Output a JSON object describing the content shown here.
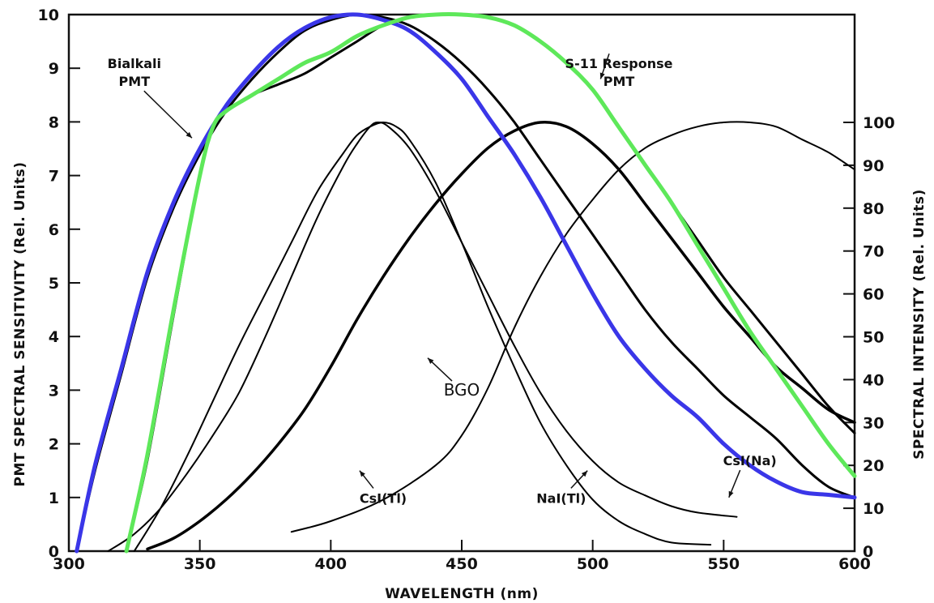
{
  "chart_data": {
    "type": "line",
    "title": "",
    "xlabel": "WAVELENGTH (nm)",
    "ylabel_left": "PMT SPECTRAL SENSITIVITY (Rel. Units)",
    "ylabel_right": "SPECTRAL INTENSITY (Rel. Units)",
    "xlim": [
      300,
      600
    ],
    "ylim_left": [
      0,
      10
    ],
    "ylim_right": [
      0,
      100
    ],
    "x_ticks": [
      "300",
      "350",
      "400",
      "450",
      "500",
      "550",
      "600"
    ],
    "y_ticks_left": [
      "0",
      "1",
      "2",
      "3",
      "4",
      "5",
      "6",
      "7",
      "8",
      "9",
      "10"
    ],
    "y_ticks_right": [
      "0",
      "10",
      "20",
      "30",
      "40",
      "50",
      "60",
      "70",
      "80",
      "90",
      "100"
    ],
    "grid": false,
    "series": [
      {
        "name": "Bialkali PMT",
        "color": "#000000",
        "width": 3,
        "points": [
          [
            303,
            0
          ],
          [
            310,
            1.5
          ],
          [
            320,
            3.3
          ],
          [
            330,
            5.1
          ],
          [
            340,
            6.4
          ],
          [
            350,
            7.4
          ],
          [
            360,
            8.2
          ],
          [
            370,
            8.8
          ],
          [
            380,
            9.3
          ],
          [
            390,
            9.7
          ],
          [
            400,
            9.9
          ],
          [
            410,
            10.0
          ],
          [
            420,
            9.95
          ],
          [
            430,
            9.8
          ],
          [
            440,
            9.5
          ],
          [
            450,
            9.1
          ],
          [
            460,
            8.6
          ],
          [
            470,
            8.0
          ],
          [
            480,
            7.3
          ],
          [
            490,
            6.6
          ],
          [
            500,
            5.9
          ],
          [
            510,
            5.2
          ],
          [
            520,
            4.5
          ],
          [
            530,
            3.9
          ],
          [
            540,
            3.4
          ],
          [
            550,
            2.9
          ],
          [
            560,
            2.5
          ],
          [
            570,
            2.1
          ],
          [
            580,
            1.6
          ],
          [
            590,
            1.2
          ],
          [
            600,
            1.0
          ]
        ]
      },
      {
        "name": "S-11 Response PMT",
        "color": "#000000",
        "width": 3,
        "points": [
          [
            322,
            0
          ],
          [
            330,
            1.7
          ],
          [
            340,
            4.4
          ],
          [
            350,
            7.0
          ],
          [
            355,
            7.9
          ],
          [
            360,
            8.2
          ],
          [
            370,
            8.5
          ],
          [
            380,
            8.7
          ],
          [
            390,
            8.9
          ],
          [
            400,
            9.2
          ],
          [
            410,
            9.5
          ],
          [
            420,
            9.8
          ],
          [
            430,
            9.95
          ],
          [
            440,
            10.0
          ],
          [
            450,
            10.0
          ],
          [
            460,
            9.95
          ],
          [
            470,
            9.8
          ],
          [
            480,
            9.5
          ],
          [
            490,
            9.1
          ],
          [
            500,
            8.6
          ],
          [
            510,
            7.9
          ],
          [
            520,
            7.2
          ],
          [
            530,
            6.5
          ],
          [
            540,
            5.8
          ],
          [
            550,
            5.1
          ],
          [
            560,
            4.5
          ],
          [
            570,
            3.9
          ],
          [
            580,
            3.3
          ],
          [
            590,
            2.7
          ],
          [
            600,
            2.2
          ]
        ]
      },
      {
        "name": "CsI(Tl)",
        "color": "#000000",
        "width": 2,
        "points": [
          [
            385,
            4.5
          ],
          [
            400,
            7
          ],
          [
            420,
            12
          ],
          [
            440,
            20
          ],
          [
            450,
            27
          ],
          [
            460,
            38
          ],
          [
            470,
            52
          ],
          [
            480,
            64
          ],
          [
            490,
            74
          ],
          [
            500,
            82
          ],
          [
            510,
            89
          ],
          [
            520,
            94
          ],
          [
            530,
            97
          ],
          [
            540,
            99
          ],
          [
            550,
            100
          ],
          [
            560,
            100
          ],
          [
            570,
            99
          ],
          [
            580,
            96
          ],
          [
            590,
            93
          ],
          [
            600,
            89
          ]
        ]
      },
      {
        "name": "NaI(Tl)",
        "color": "#000000",
        "width": 2,
        "points": [
          [
            325,
            0
          ],
          [
            335,
            10
          ],
          [
            345,
            22
          ],
          [
            355,
            35
          ],
          [
            365,
            48
          ],
          [
            375,
            60
          ],
          [
            385,
            72
          ],
          [
            395,
            84
          ],
          [
            405,
            93
          ],
          [
            410,
            97
          ],
          [
            415,
            99
          ],
          [
            420,
            100
          ],
          [
            425,
            99
          ],
          [
            430,
            96
          ],
          [
            440,
            86
          ],
          [
            450,
            72
          ],
          [
            460,
            57
          ],
          [
            470,
            43
          ],
          [
            480,
            30
          ],
          [
            490,
            20
          ],
          [
            500,
            12
          ],
          [
            510,
            7
          ],
          [
            520,
            4
          ],
          [
            530,
            2
          ],
          [
            545,
            1.5
          ]
        ]
      },
      {
        "name": "CsI(Na)",
        "color": "#000000",
        "width": 2,
        "points": [
          [
            315,
            0
          ],
          [
            325,
            4
          ],
          [
            335,
            10
          ],
          [
            345,
            18
          ],
          [
            355,
            27
          ],
          [
            365,
            37
          ],
          [
            375,
            50
          ],
          [
            385,
            64
          ],
          [
            395,
            78
          ],
          [
            405,
            90
          ],
          [
            410,
            95
          ],
          [
            415,
            99
          ],
          [
            418,
            100
          ],
          [
            422,
            99
          ],
          [
            430,
            94
          ],
          [
            440,
            84
          ],
          [
            450,
            72
          ],
          [
            460,
            60
          ],
          [
            470,
            48
          ],
          [
            480,
            37
          ],
          [
            490,
            28
          ],
          [
            500,
            21
          ],
          [
            510,
            16
          ],
          [
            520,
            13
          ],
          [
            530,
            10.5
          ],
          [
            540,
            9
          ],
          [
            555,
            8
          ]
        ]
      },
      {
        "name": "BGO",
        "color": "#000000",
        "width": 3.5,
        "points": [
          [
            330,
            0.5
          ],
          [
            340,
            3
          ],
          [
            350,
            7
          ],
          [
            360,
            12
          ],
          [
            370,
            18
          ],
          [
            380,
            25
          ],
          [
            390,
            33
          ],
          [
            400,
            43
          ],
          [
            410,
            54
          ],
          [
            420,
            64
          ],
          [
            430,
            73
          ],
          [
            440,
            81
          ],
          [
            450,
            88
          ],
          [
            460,
            94
          ],
          [
            470,
            98
          ],
          [
            480,
            100
          ],
          [
            490,
            99
          ],
          [
            500,
            95
          ],
          [
            510,
            89
          ],
          [
            520,
            81
          ],
          [
            530,
            73
          ],
          [
            540,
            65
          ],
          [
            550,
            57
          ],
          [
            560,
            50
          ],
          [
            570,
            43
          ],
          [
            580,
            38
          ],
          [
            590,
            33
          ],
          [
            600,
            30
          ]
        ]
      },
      {
        "name": "",
        "color": "#3a36e8",
        "width": 5,
        "points": [
          [
            303,
            0
          ],
          [
            310,
            1.6
          ],
          [
            320,
            3.4
          ],
          [
            330,
            5.2
          ],
          [
            340,
            6.5
          ],
          [
            350,
            7.5
          ],
          [
            360,
            8.3
          ],
          [
            370,
            8.9
          ],
          [
            380,
            9.4
          ],
          [
            390,
            9.75
          ],
          [
            400,
            9.95
          ],
          [
            410,
            10.0
          ],
          [
            420,
            9.9
          ],
          [
            430,
            9.7
          ],
          [
            440,
            9.3
          ],
          [
            450,
            8.8
          ],
          [
            460,
            8.1
          ],
          [
            470,
            7.4
          ],
          [
            480,
            6.6
          ],
          [
            490,
            5.7
          ],
          [
            500,
            4.8
          ],
          [
            510,
            4.0
          ],
          [
            520,
            3.4
          ],
          [
            530,
            2.9
          ],
          [
            540,
            2.5
          ],
          [
            550,
            2.0
          ],
          [
            560,
            1.6
          ],
          [
            570,
            1.3
          ],
          [
            580,
            1.1
          ],
          [
            590,
            1.05
          ],
          [
            600,
            1.0
          ]
        ]
      },
      {
        "name": "",
        "color": "#5ee85a",
        "width": 5,
        "points": [
          [
            322,
            0
          ],
          [
            330,
            1.8
          ],
          [
            340,
            4.5
          ],
          [
            350,
            7.0
          ],
          [
            355,
            7.9
          ],
          [
            360,
            8.2
          ],
          [
            370,
            8.5
          ],
          [
            380,
            8.8
          ],
          [
            390,
            9.1
          ],
          [
            400,
            9.3
          ],
          [
            410,
            9.6
          ],
          [
            420,
            9.8
          ],
          [
            430,
            9.95
          ],
          [
            440,
            10.0
          ],
          [
            450,
            10.0
          ],
          [
            460,
            9.95
          ],
          [
            470,
            9.8
          ],
          [
            480,
            9.5
          ],
          [
            490,
            9.1
          ],
          [
            500,
            8.6
          ],
          [
            510,
            7.9
          ],
          [
            520,
            7.2
          ],
          [
            530,
            6.5
          ],
          [
            540,
            5.7
          ],
          [
            550,
            4.9
          ],
          [
            560,
            4.1
          ],
          [
            570,
            3.4
          ],
          [
            580,
            2.7
          ],
          [
            590,
            2.0
          ],
          [
            600,
            1.4
          ]
        ]
      }
    ],
    "right_axis_series": [
      "CsI(Tl)",
      "NaI(Tl)",
      "CsI(Na)",
      "BGO"
    ],
    "annotations": [
      {
        "text_lines": [
          "Bialkali",
          "PMT"
        ],
        "x": 325,
        "y": 9.0,
        "arrow_to": [
          347,
          7.7
        ]
      },
      {
        "text_lines": [
          "S-11 Response",
          "PMT"
        ],
        "x": 510,
        "y": 9.0,
        "arrow_to": [
          503,
          8.8
        ]
      },
      {
        "text_lines": [
          "BGO"
        ],
        "x": 450,
        "y": 2.9,
        "arrow_to": [
          437,
          3.6
        ],
        "large": true
      },
      {
        "text_lines": [
          "CsI(Tl)"
        ],
        "x": 420,
        "y": 0.9,
        "arrow_to": [
          411,
          1.5
        ]
      },
      {
        "text_lines": [
          "NaI(Tl)"
        ],
        "x": 488,
        "y": 0.9,
        "arrow_to": [
          498,
          1.5
        ]
      },
      {
        "text_lines": [
          "CsI(Na)"
        ],
        "x": 560,
        "y": 1.6,
        "arrow_to": [
          552,
          1.0
        ]
      }
    ]
  }
}
